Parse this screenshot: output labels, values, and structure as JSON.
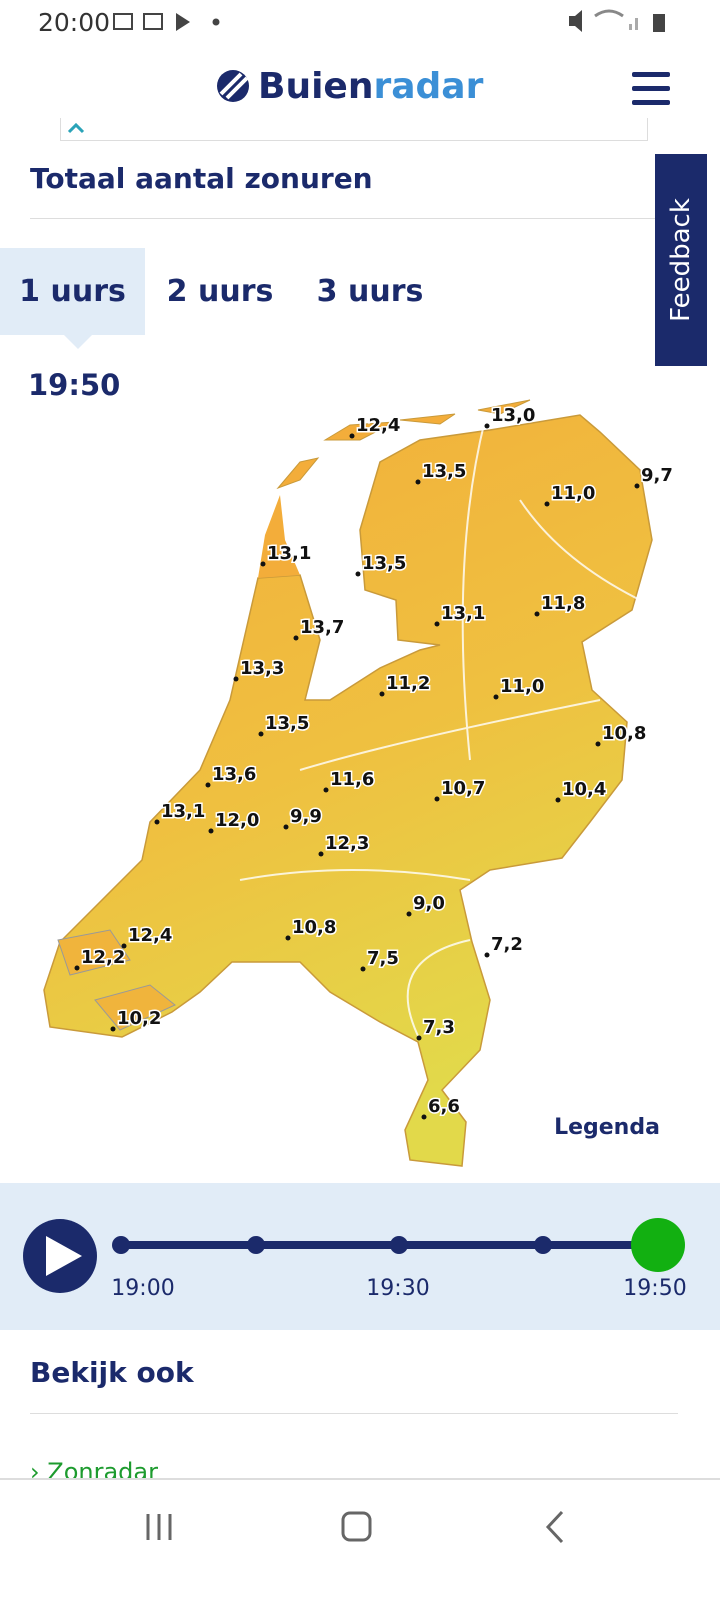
{
  "status_bar": {
    "time": "20:00"
  },
  "header": {
    "brand": [
      "Buien",
      "radar"
    ]
  },
  "section": {
    "title": "Totaal aantal zonuren"
  },
  "tabs": [
    "1 uurs",
    "2 uurs",
    "3 uurs"
  ],
  "current_time": "19:50",
  "map": {
    "labels": [
      "12,4",
      "13,0",
      "13,5",
      "11,0",
      "9,7",
      "13,1",
      "13,5",
      "11,8",
      "13,1",
      "13,7",
      "13,3",
      "11,2",
      "11,0",
      "13,5",
      "10,8",
      "13,6",
      "11,6",
      "10,7",
      "10,4",
      "13,1",
      "12,0",
      "9,9",
      "12,3",
      "9,0",
      "10,8",
      "12,4",
      "7,2",
      "12,2",
      "7,5",
      "10,2",
      "7,3",
      "6,6"
    ],
    "legend": "Legenda"
  },
  "timeline": {
    "labels": [
      "19:00",
      "19:30",
      "19:50"
    ]
  },
  "feedback": "Feedback",
  "see_also": {
    "title": "Bekijk ook",
    "links": [
      "Zonradar"
    ]
  }
}
